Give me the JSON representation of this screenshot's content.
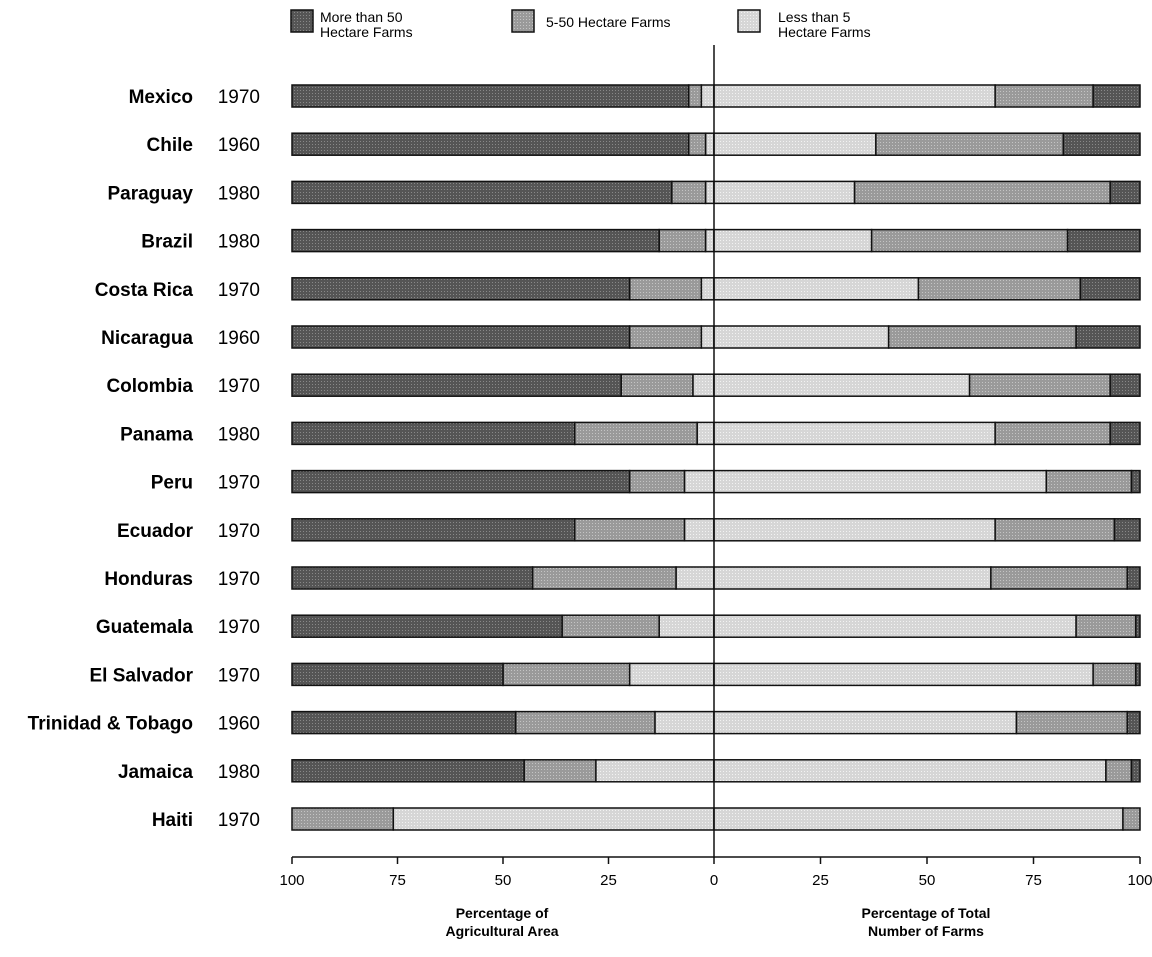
{
  "chart_data": {
    "type": "bar",
    "orientation": "horizontal",
    "layout": "back-to-back stacked 100% bars",
    "legend": {
      "placement": "top",
      "items": [
        {
          "key": "large",
          "line1": "More than 50",
          "line2": "Hectare Farms",
          "color": "#555555"
        },
        {
          "key": "medium",
          "line1": "5-50 Hectare Farms",
          "line2": "",
          "color": "#9a9a9a"
        },
        {
          "key": "small",
          "line1": "Less than 5",
          "line2": "Hectare Farms",
          "color": "#d6d6d6"
        }
      ]
    },
    "left_panel": {
      "xlabel_line1": "Percentage of",
      "xlabel_line2": "Agricultural Area",
      "xlim": [
        100,
        0
      ],
      "ticks": [
        "100",
        "75",
        "50",
        "25",
        "0"
      ]
    },
    "right_panel": {
      "xlabel_line1": "Percentage of Total",
      "xlabel_line2": "Number of Farms",
      "xlim": [
        0,
        100
      ],
      "ticks": [
        "25",
        "50",
        "75",
        "100"
      ]
    },
    "rows": [
      {
        "country": "Mexico",
        "year": "1970",
        "area": {
          "large": 94,
          "medium": 3,
          "small": 3
        },
        "farms": {
          "small": 66,
          "medium": 23,
          "large": 11
        }
      },
      {
        "country": "Chile",
        "year": "1960",
        "area": {
          "large": 94,
          "medium": 4,
          "small": 2
        },
        "farms": {
          "small": 38,
          "medium": 44,
          "large": 18
        }
      },
      {
        "country": "Paraguay",
        "year": "1980",
        "area": {
          "large": 90,
          "medium": 8,
          "small": 2
        },
        "farms": {
          "small": 33,
          "medium": 60,
          "large": 7
        }
      },
      {
        "country": "Brazil",
        "year": "1980",
        "area": {
          "large": 87,
          "medium": 11,
          "small": 2
        },
        "farms": {
          "small": 37,
          "medium": 46,
          "large": 17
        }
      },
      {
        "country": "Costa Rica",
        "year": "1970",
        "area": {
          "large": 80,
          "medium": 17,
          "small": 3
        },
        "farms": {
          "small": 48,
          "medium": 38,
          "large": 14
        }
      },
      {
        "country": "Nicaragua",
        "year": "1960",
        "area": {
          "large": 80,
          "medium": 17,
          "small": 3
        },
        "farms": {
          "small": 41,
          "medium": 44,
          "large": 15
        }
      },
      {
        "country": "Colombia",
        "year": "1970",
        "area": {
          "large": 78,
          "medium": 17,
          "small": 5
        },
        "farms": {
          "small": 60,
          "medium": 33,
          "large": 7
        }
      },
      {
        "country": "Panama",
        "year": "1980",
        "area": {
          "large": 67,
          "medium": 29,
          "small": 4
        },
        "farms": {
          "small": 66,
          "medium": 27,
          "large": 7
        }
      },
      {
        "country": "Peru",
        "year": "1970",
        "area": {
          "large": 80,
          "medium": 13,
          "small": 7
        },
        "farms": {
          "small": 78,
          "medium": 20,
          "large": 2
        }
      },
      {
        "country": "Ecuador",
        "year": "1970",
        "area": {
          "large": 67,
          "medium": 26,
          "small": 7
        },
        "farms": {
          "small": 66,
          "medium": 28,
          "large": 6
        }
      },
      {
        "country": "Honduras",
        "year": "1970",
        "area": {
          "large": 57,
          "medium": 34,
          "small": 9
        },
        "farms": {
          "small": 65,
          "medium": 32,
          "large": 3
        }
      },
      {
        "country": "Guatemala",
        "year": "1970",
        "area": {
          "large": 64,
          "medium": 23,
          "small": 13
        },
        "farms": {
          "small": 85,
          "medium": 14,
          "large": 1
        }
      },
      {
        "country": "El Salvador",
        "year": "1970",
        "area": {
          "large": 50,
          "medium": 30,
          "small": 20
        },
        "farms": {
          "small": 89,
          "medium": 10,
          "large": 1
        }
      },
      {
        "country": "Trinidad & Tobago",
        "year": "1960",
        "area": {
          "large": 53,
          "medium": 33,
          "small": 14
        },
        "farms": {
          "small": 71,
          "medium": 26,
          "large": 3
        }
      },
      {
        "country": "Jamaica",
        "year": "1980",
        "area": {
          "large": 55,
          "medium": 17,
          "small": 28
        },
        "farms": {
          "small": 92,
          "medium": 6,
          "large": 2
        }
      },
      {
        "country": "Haiti",
        "year": "1970",
        "area": {
          "large": 0,
          "medium": 24,
          "small": 76
        },
        "farms": {
          "small": 96,
          "medium": 4,
          "large": 0
        }
      }
    ]
  }
}
